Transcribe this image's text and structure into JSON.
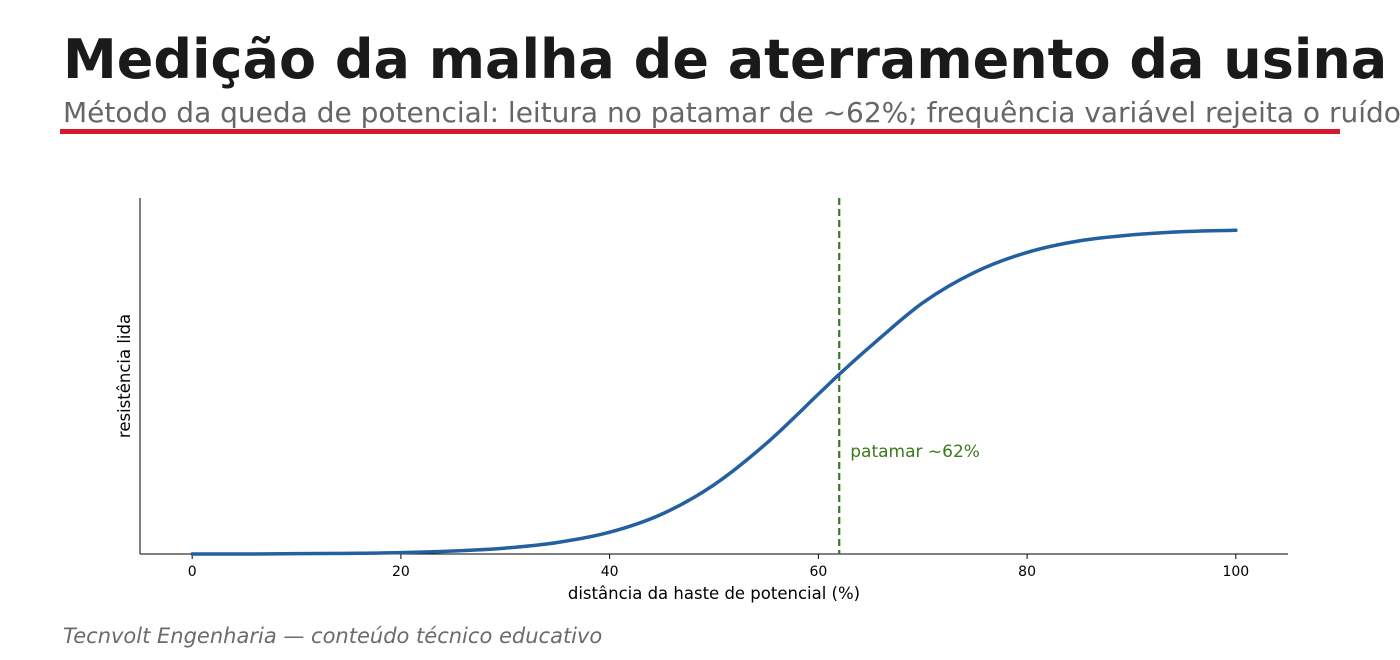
{
  "header": {
    "title": "Medição da malha de aterramento da usina",
    "subtitle": "Método da queda de potencial: leitura no patamar de ~62%; frequência variável rejeita o ruído",
    "accent_color": "#d7192e"
  },
  "footer": {
    "credit": "Tecnvolt Engenharia — conteúdo técnico educativo"
  },
  "chart_data": {
    "type": "line",
    "title": "",
    "xlabel": "distância da haste de potencial (%)",
    "ylabel": "resistência lida",
    "xlim": [
      -5,
      105
    ],
    "ylim": [
      0,
      1.08
    ],
    "x_ticks": [
      0,
      20,
      40,
      60,
      80,
      100
    ],
    "y_ticks_shown": false,
    "grid": false,
    "series": [
      {
        "color": "#2260a0",
        "x": [
          0,
          5,
          10,
          15,
          20,
          25,
          30,
          35,
          40,
          45,
          50,
          55,
          60,
          62,
          65,
          70,
          75,
          80,
          85,
          90,
          95,
          100
        ],
        "y": [
          0.0,
          0.0,
          0.001,
          0.002,
          0.004,
          0.009,
          0.018,
          0.035,
          0.066,
          0.121,
          0.21,
          0.335,
          0.485,
          0.545,
          0.63,
          0.762,
          0.855,
          0.915,
          0.95,
          0.968,
          0.978,
          0.982
        ]
      }
    ],
    "annotations": [
      {
        "type": "vline",
        "x": 62,
        "color": "#3a7a1e",
        "style": "dashed",
        "label": "patamar ~62%"
      }
    ]
  }
}
